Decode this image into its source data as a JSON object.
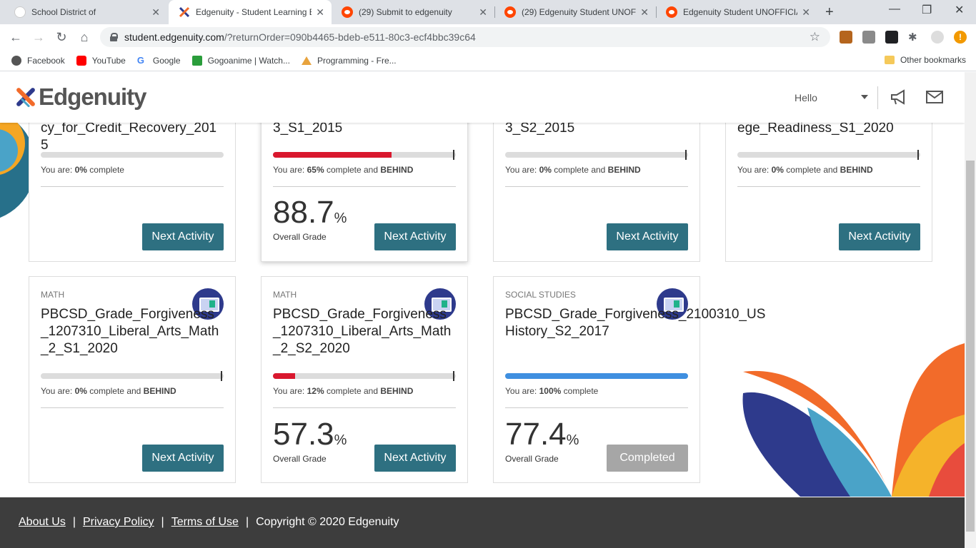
{
  "browser": {
    "tabs": [
      {
        "title": "School District of",
        "icon": "school-icon"
      },
      {
        "title": "Edgenuity - Student Learning E",
        "icon": "edgenuity-icon"
      },
      {
        "title": "(29) Submit to edgenuity",
        "icon": "reddit-icon"
      },
      {
        "title": "(29) Edgenuity Student UNOFF",
        "icon": "reddit-icon"
      },
      {
        "title": "Edgenuity Student UNOFFICIA",
        "icon": "reddit-icon"
      }
    ],
    "url_host": "student.edgenuity.com",
    "url_path": "/?returnOrder=090b4465-bdeb-e511-80c3-ecf4bbc39c64",
    "bookmarks": [
      "Facebook",
      "YouTube",
      "Google",
      "Gogoanime | Watch...",
      "Programming - Fre..."
    ],
    "other_bookmarks": "Other bookmarks"
  },
  "header": {
    "logo_text": "Edgenuity",
    "greeting": "Hello"
  },
  "cards": [
    {
      "subject": "",
      "title": "cy_for_Credit_Recovery_2015",
      "progress": 0,
      "status_prefix": "You are: ",
      "status_pct": "0%",
      "status_suffix": " complete",
      "behind": "",
      "grade": "",
      "grade_label": "",
      "button": "Next Activity",
      "button_state": "next"
    },
    {
      "subject": "",
      "title": "3_S1_2015",
      "progress": 65,
      "status_prefix": "You are: ",
      "status_pct": "65%",
      "status_suffix": " complete and ",
      "behind": "BEHIND",
      "grade": "88.7",
      "grade_label": "Overall Grade",
      "button": "Next Activity",
      "button_state": "next"
    },
    {
      "subject": "",
      "title": "3_S2_2015",
      "progress": 0,
      "status_prefix": "You are: ",
      "status_pct": "0%",
      "status_suffix": " complete and ",
      "behind": "BEHIND",
      "grade": "",
      "grade_label": "",
      "button": "Next Activity",
      "button_state": "next"
    },
    {
      "subject": "",
      "title": "ege_Readiness_S1_2020",
      "progress": 0,
      "status_prefix": "You are: ",
      "status_pct": "0%",
      "status_suffix": " complete and ",
      "behind": "BEHIND",
      "grade": "",
      "grade_label": "",
      "button": "Next Activity",
      "button_state": "next"
    },
    {
      "subject": "MATH",
      "title": "PBCSD_Grade_Forgiveness_1207310_Liberal_Arts_Math_2_S1_2020",
      "progress": 0,
      "status_prefix": "You are: ",
      "status_pct": "0%",
      "status_suffix": " complete and ",
      "behind": "BEHIND",
      "grade": "",
      "grade_label": "",
      "button": "Next Activity",
      "button_state": "next"
    },
    {
      "subject": "MATH",
      "title": "PBCSD_Grade_Forgiveness_1207310_Liberal_Arts_Math_2_S2_2020",
      "progress": 12,
      "status_prefix": "You are: ",
      "status_pct": "12%",
      "status_suffix": " complete and ",
      "behind": "BEHIND",
      "grade": "57.3",
      "grade_label": "Overall Grade",
      "button": "Next Activity",
      "button_state": "next"
    },
    {
      "subject": "SOCIAL STUDIES",
      "title": "PBCSD_Grade_Forgiveness_2100310_US History_S2_2017",
      "progress": 100,
      "status_prefix": "You are: ",
      "status_pct": "100%",
      "status_suffix": " complete",
      "behind": "",
      "grade": "77.4",
      "grade_label": "Overall Grade",
      "button": "Completed",
      "button_state": "done"
    }
  ],
  "colors": {
    "button": "#2e7081",
    "button_done": "#a6a6a6",
    "behind_fill": "#d9182e",
    "complete_fill": "#3f8fe0"
  },
  "footer": {
    "about": "About Us",
    "privacy": "Privacy Policy",
    "terms": "Terms of Use",
    "copyright": "Copyright © 2020 Edgenuity"
  }
}
